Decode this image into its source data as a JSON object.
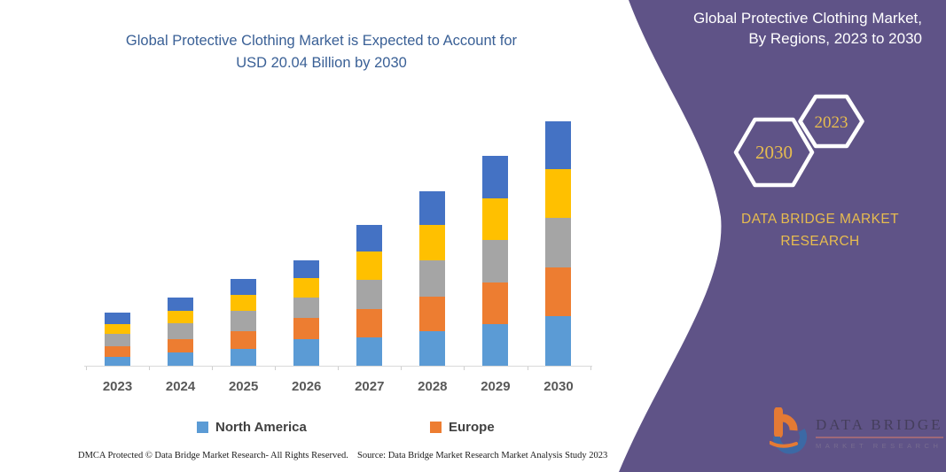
{
  "left_panel": {
    "title_line1": "Global Protective Clothing Market is Expected to Account for",
    "title_line2": "USD 20.04 Billion by 2030",
    "footer_left": "DMCA Protected © Data Bridge Market Research-  All Rights Reserved.",
    "footer_right": "Source: Data Bridge Market Research  Market Analysis Study 2023"
  },
  "chart_data": {
    "type": "bar",
    "stacked": true,
    "title": "Global Protective Clothing Market is Expected to Account for USD 20.04 Billion by 2030",
    "unit": "USD Billion",
    "categories": [
      "2023",
      "2024",
      "2025",
      "2026",
      "2027",
      "2028",
      "2029",
      "2030"
    ],
    "series": [
      {
        "name": "North America",
        "color": "#5B9BD5",
        "values": [
          0.73,
          1.09,
          1.4,
          2.18,
          2.3,
          2.85,
          3.43,
          4.04
        ]
      },
      {
        "name": "Europe",
        "color": "#ED7D31",
        "values": [
          0.85,
          1.09,
          1.45,
          1.74,
          2.37,
          2.83,
          3.41,
          4.01
        ]
      },
      {
        "name": "Unlabeled (gray)",
        "color": "#A5A5A5",
        "values": [
          1.04,
          1.28,
          1.62,
          1.69,
          2.34,
          2.97,
          3.43,
          4.04
        ]
      },
      {
        "name": "Unlabeled (yellow)",
        "color": "#FFC000",
        "values": [
          0.78,
          1.04,
          1.33,
          1.57,
          2.32,
          2.9,
          3.43,
          3.99
        ]
      },
      {
        "name": "Unlabeled (blue)",
        "color": "#4472C4",
        "values": [
          0.92,
          1.13,
          1.33,
          1.45,
          2.18,
          2.76,
          3.5,
          3.96
        ]
      }
    ],
    "totals": [
      4.32,
      5.63,
      7.13,
      8.63,
      11.51,
      14.31,
      17.2,
      20.04
    ],
    "legend": [
      "North America",
      "Europe"
    ],
    "legend_position": "bottom",
    "grid": false,
    "y_axis_shown": false,
    "ylim": [
      0,
      20.5
    ]
  },
  "right_panel": {
    "title_line1": "Global Protective Clothing Market,",
    "title_line2": "By Regions, 2023 to 2030",
    "hexagon_back_year": "2030",
    "hexagon_front_year": "2023",
    "brand_line1": "DATA BRIDGE MARKET",
    "brand_line2": "RESEARCH",
    "logo_line1": "DATA BRIDGE",
    "logo_line2": "MARKET RESEARCH"
  },
  "colors": {
    "panel_purple": "#5f5387",
    "gold": "#e7bc4f",
    "title_blue": "#3a6096",
    "logo_orange": "#F07E2E",
    "logo_blue": "#3A6BA8"
  }
}
